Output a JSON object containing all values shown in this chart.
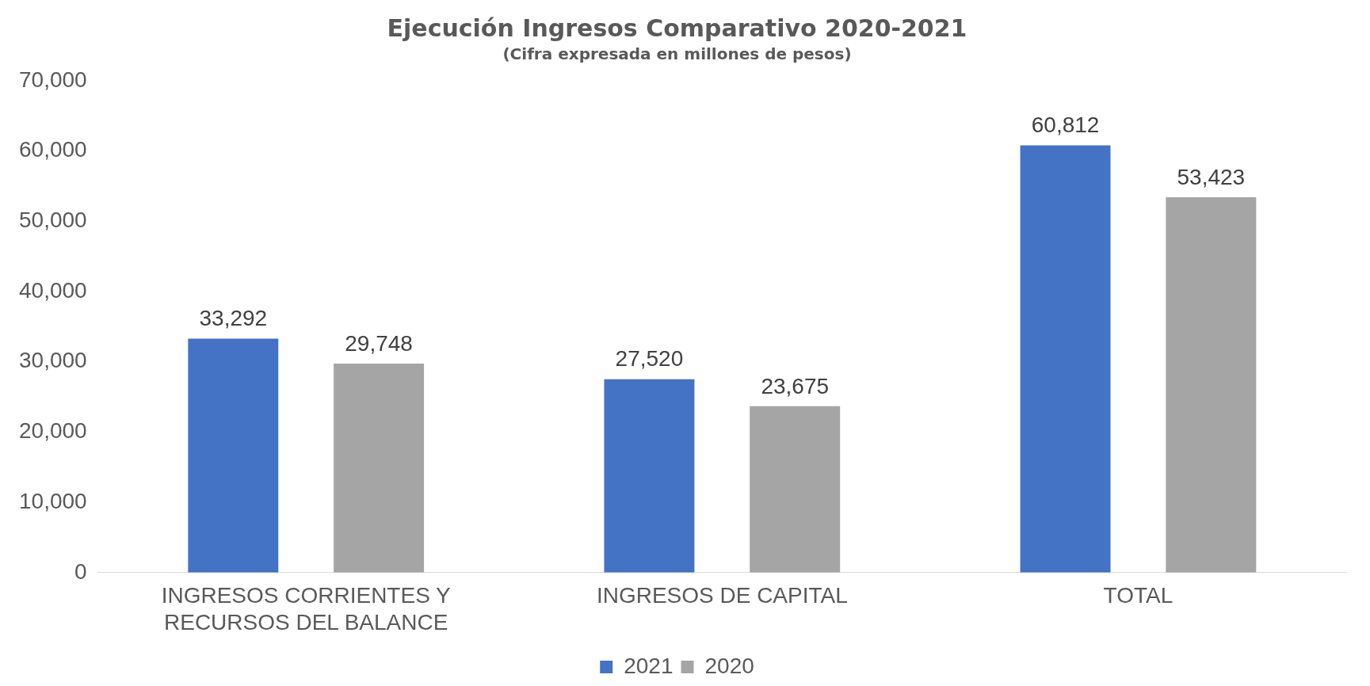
{
  "chart_data": {
    "type": "bar",
    "title": "Ejecución Ingresos Comparativo 2020-2021",
    "subtitle": "(Cifra expresada en millones de pesos)",
    "categories": [
      "INGRESOS CORRIENTES Y RECURSOS DEL BALANCE",
      "INGRESOS DE CAPITAL",
      "TOTAL"
    ],
    "series": [
      {
        "name": "2021",
        "color": "#4472c4",
        "values": [
          33292,
          27520,
          60812
        ],
        "value_labels": [
          "33,292",
          "27,520",
          "60,812"
        ]
      },
      {
        "name": "2020",
        "color": "#a5a5a5",
        "values": [
          29748,
          23675,
          53423
        ],
        "value_labels": [
          "29,748",
          "23,675",
          "53,423"
        ]
      }
    ],
    "ylim": [
      0,
      70000
    ],
    "yticks": [
      0,
      {
        "value": 10000,
        "label": "10,000"
      },
      {
        "value": 20000,
        "label": "20,000"
      },
      {
        "value": 30000,
        "label": "30,000"
      },
      {
        "value": 40000,
        "label": "40,000"
      },
      {
        "value": 50000,
        "label": "50,000"
      },
      {
        "value": 60000,
        "label": "60,000"
      },
      {
        "value": 70000,
        "label": "70,000"
      }
    ],
    "grid": false,
    "legend": "bottom"
  }
}
